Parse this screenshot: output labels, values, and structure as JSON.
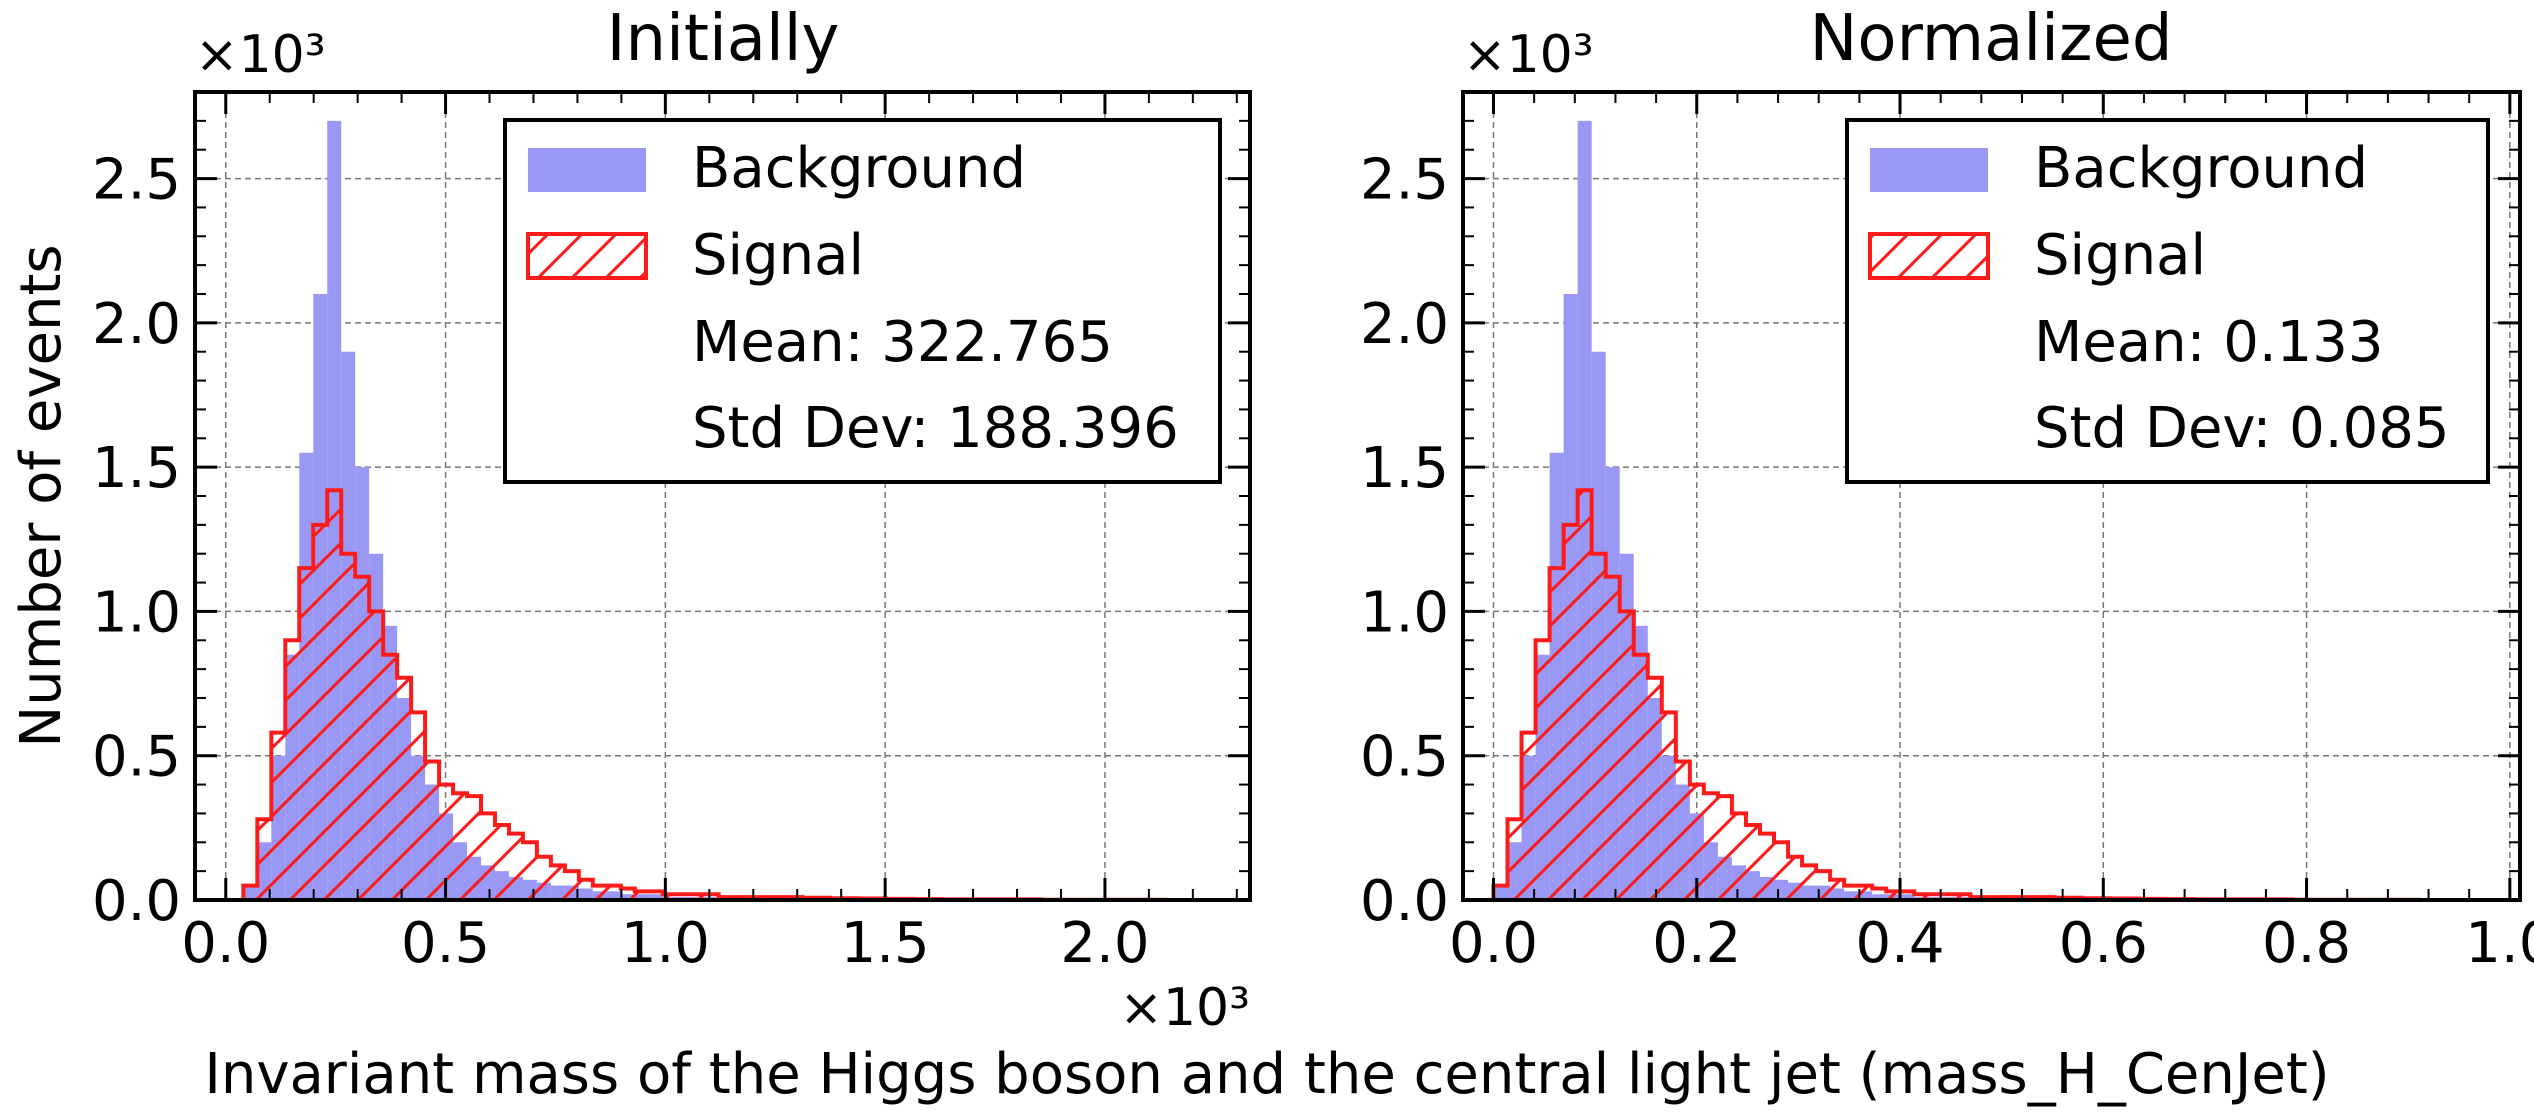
{
  "figure": {
    "xlabel": "Invariant mass of the Higgs boson and the central light jet (mass_H_CenJet)",
    "ylabel": "Number of events",
    "bin_edges_note": ""
  },
  "chart_data": [
    {
      "type": "bar",
      "title": "Initially",
      "y_multiplier": "×10³",
      "x_multiplier": "×10³",
      "xlim": [
        -0.07,
        2.33
      ],
      "ylim": [
        0,
        2.8
      ],
      "xticks": [
        "0.0",
        "0.5",
        "1.0",
        "1.5",
        "2.0"
      ],
      "xtick_values": [
        0.0,
        0.5,
        1.0,
        1.5,
        2.0
      ],
      "yticks": [
        "0.0",
        "0.5",
        "1.0",
        "1.5",
        "2.0",
        "2.5"
      ],
      "ytick_values": [
        0.0,
        0.5,
        1.0,
        1.5,
        2.0,
        2.5
      ],
      "grid": true,
      "legend_position": "top-right",
      "legend": {
        "background_label": "Background",
        "signal_label": "Signal",
        "mean_text": "Mean: 322.765",
        "std_text": "Std Dev: 188.396"
      },
      "bins": {
        "start": 0.04,
        "width": 0.0318
      },
      "series": [
        {
          "name": "Background",
          "style": "filled",
          "color": "#9999f5",
          "values": [
            0.05,
            0.2,
            0.5,
            0.85,
            1.55,
            2.1,
            2.7,
            1.9,
            1.5,
            1.2,
            0.95,
            0.7,
            0.5,
            0.4,
            0.3,
            0.2,
            0.15,
            0.12,
            0.1,
            0.08,
            0.07,
            0.06,
            0.05,
            0.05,
            0.04,
            0.03,
            0.03,
            0.02,
            0.02,
            0.02,
            0.01,
            0.01,
            0.01,
            0.01,
            0.01,
            0.01,
            0.005,
            0.005,
            0.005,
            0.005,
            0.004,
            0.004,
            0.003,
            0.003,
            0.003,
            0.002,
            0.002,
            0.002,
            0.002,
            0.002,
            0.001,
            0.001,
            0.001,
            0.001,
            0.001,
            0.001,
            0.001,
            0.001,
            0.001,
            0.001,
            0.001,
            0.001,
            0.001,
            0.001,
            0.001,
            0.001
          ]
        },
        {
          "name": "Signal",
          "style": "hatched",
          "color": "#ff1a1a",
          "values": [
            0.05,
            0.28,
            0.58,
            0.9,
            1.15,
            1.3,
            1.42,
            1.2,
            1.12,
            1.0,
            0.85,
            0.77,
            0.65,
            0.48,
            0.4,
            0.37,
            0.36,
            0.3,
            0.26,
            0.23,
            0.2,
            0.15,
            0.12,
            0.1,
            0.07,
            0.05,
            0.05,
            0.04,
            0.03,
            0.03,
            0.02,
            0.02,
            0.02,
            0.02,
            0.01,
            0.01,
            0.01,
            0.01,
            0.01,
            0.01,
            0.008,
            0.008,
            0.006,
            0.006,
            0.005,
            0.005,
            0.004,
            0.004,
            0.003,
            0.003,
            0.002,
            0.002,
            0.002,
            0.002,
            0.002,
            0.002,
            0.002,
            0.001,
            0.001,
            0.001,
            0.001,
            0.001,
            0.001,
            0.001,
            0.001,
            0.001
          ]
        }
      ]
    },
    {
      "type": "bar",
      "title": "Normalized",
      "y_multiplier": "×10³",
      "xlim": [
        -0.03,
        1.01
      ],
      "ylim": [
        0,
        2.8
      ],
      "xticks": [
        "0.0",
        "0.2",
        "0.4",
        "0.6",
        "0.8",
        "1.0"
      ],
      "xtick_values": [
        0.0,
        0.2,
        0.4,
        0.6,
        0.8,
        1.0
      ],
      "yticks": [
        "0.0",
        "0.5",
        "1.0",
        "1.5",
        "2.0",
        "2.5"
      ],
      "ytick_values": [
        0.0,
        0.5,
        1.0,
        1.5,
        2.0,
        2.5
      ],
      "grid": true,
      "legend_position": "top-right",
      "legend": {
        "background_label": "Background",
        "signal_label": "Signal",
        "mean_text": "Mean: 0.133",
        "std_text": "Std Dev: 0.085"
      },
      "bins": {
        "start": 0.0,
        "width": 0.0138
      },
      "series": [
        {
          "name": "Background",
          "style": "filled",
          "color": "#9999f5",
          "values": [
            0.05,
            0.2,
            0.5,
            0.85,
            1.55,
            2.1,
            2.7,
            1.9,
            1.5,
            1.2,
            0.95,
            0.7,
            0.5,
            0.4,
            0.3,
            0.2,
            0.15,
            0.12,
            0.1,
            0.08,
            0.07,
            0.06,
            0.05,
            0.05,
            0.04,
            0.03,
            0.03,
            0.02,
            0.02,
            0.02,
            0.01,
            0.01,
            0.01,
            0.01,
            0.01,
            0.01,
            0.005,
            0.005,
            0.005,
            0.005,
            0.004,
            0.004,
            0.003,
            0.003,
            0.003,
            0.002,
            0.002,
            0.002,
            0.002,
            0.002,
            0.001,
            0.001,
            0.001,
            0.001,
            0.001,
            0.001,
            0.001,
            0.001,
            0.001,
            0.001,
            0.001,
            0.001,
            0.001,
            0.001,
            0.001,
            0.001
          ]
        },
        {
          "name": "Signal",
          "style": "hatched",
          "color": "#ff1a1a",
          "values": [
            0.05,
            0.28,
            0.58,
            0.9,
            1.15,
            1.3,
            1.42,
            1.2,
            1.12,
            1.0,
            0.85,
            0.77,
            0.65,
            0.48,
            0.4,
            0.37,
            0.36,
            0.3,
            0.26,
            0.23,
            0.2,
            0.15,
            0.12,
            0.1,
            0.07,
            0.05,
            0.05,
            0.04,
            0.03,
            0.03,
            0.02,
            0.02,
            0.02,
            0.02,
            0.01,
            0.01,
            0.01,
            0.01,
            0.01,
            0.01,
            0.008,
            0.008,
            0.006,
            0.006,
            0.005,
            0.005,
            0.004,
            0.004,
            0.003,
            0.003,
            0.002,
            0.002,
            0.002,
            0.002,
            0.002,
            0.002,
            0.002,
            0.001,
            0.001,
            0.001,
            0.001,
            0.001,
            0.001,
            0.001,
            0.001,
            0.001
          ]
        }
      ]
    }
  ]
}
